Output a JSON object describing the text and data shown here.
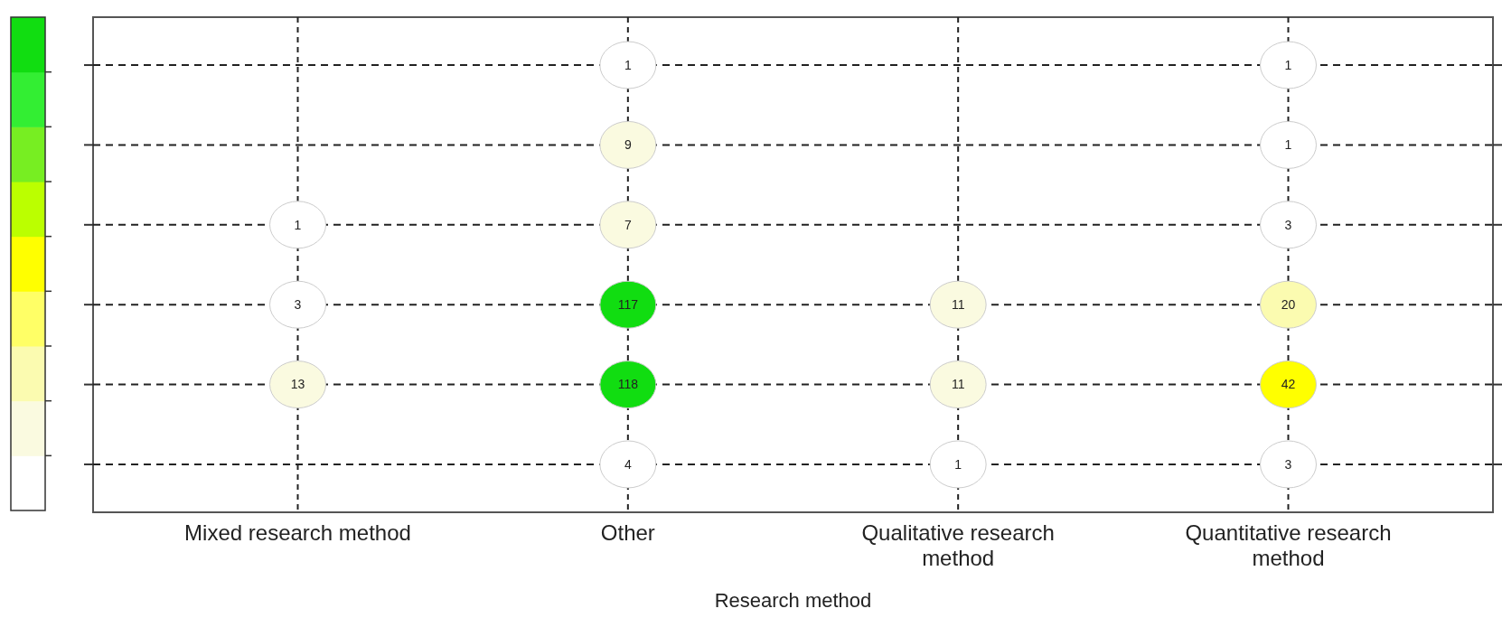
{
  "chart_data": {
    "type": "heatmap",
    "xlabel": "Research method",
    "categories": [
      "Mixed research method",
      "Other",
      "Qualitative research method",
      "Quantitative research method"
    ],
    "y_categories": [
      null,
      null,
      null,
      null,
      null,
      null
    ],
    "cells": [
      [
        null,
        1,
        null,
        1
      ],
      [
        null,
        9,
        null,
        1
      ],
      [
        1,
        7,
        null,
        3
      ],
      [
        3,
        117,
        11,
        20
      ],
      [
        13,
        118,
        11,
        42
      ],
      [
        null,
        4,
        1,
        3
      ]
    ],
    "grid": true,
    "data_labels": true
  }
}
